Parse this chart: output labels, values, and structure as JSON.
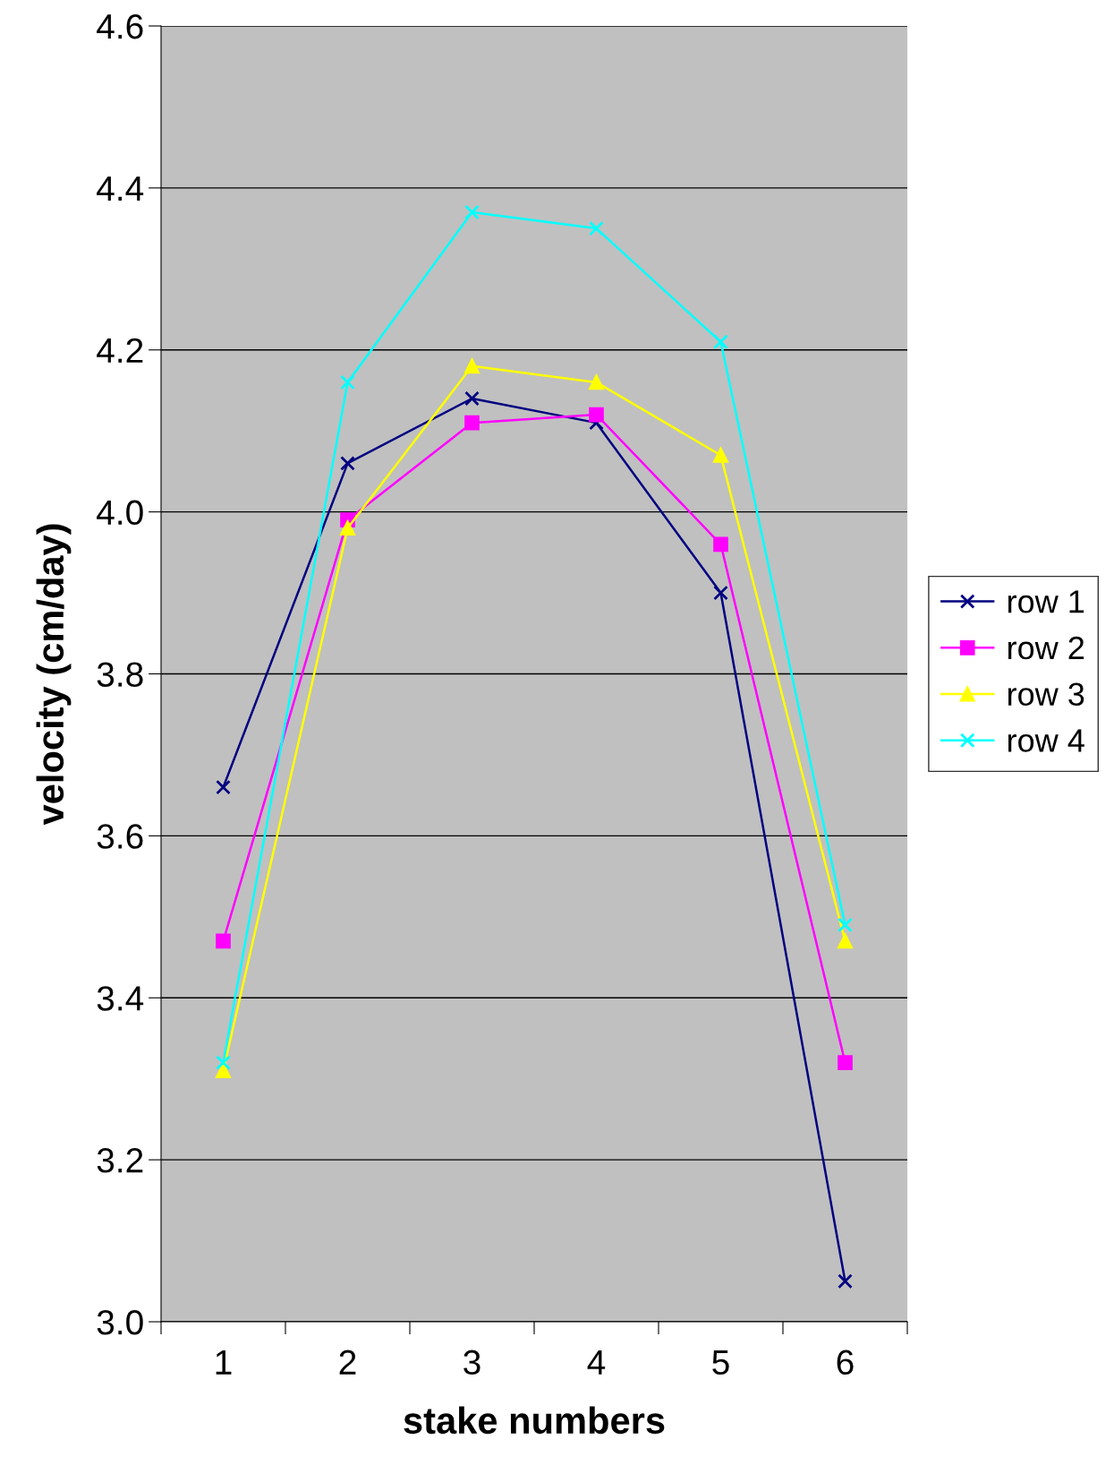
{
  "chart_data": {
    "type": "line",
    "xlabel": "stake numbers",
    "ylabel": "velocity (cm/day)",
    "categories": [
      "1",
      "2",
      "3",
      "4",
      "5",
      "6"
    ],
    "series": [
      {
        "name": "row 1",
        "color": "#000080",
        "marker": "cross",
        "values": [
          3.66,
          4.06,
          4.14,
          4.11,
          3.9,
          3.05
        ]
      },
      {
        "name": "row 2",
        "color": "#ff00ff",
        "marker": "square",
        "values": [
          3.47,
          3.99,
          4.11,
          4.12,
          3.96,
          3.32
        ]
      },
      {
        "name": "row 3",
        "color": "#ffff00",
        "marker": "triangle",
        "values": [
          3.31,
          3.98,
          4.18,
          4.16,
          4.07,
          3.47
        ]
      },
      {
        "name": "row 4",
        "color": "#00ffff",
        "marker": "cross",
        "values": [
          3.32,
          4.16,
          4.37,
          4.35,
          4.21,
          3.49
        ]
      }
    ],
    "ylim": [
      3.0,
      4.6
    ],
    "yticks": [
      {
        "value": 3.0,
        "label": "3.0"
      },
      3.2,
      3.4,
      3.6,
      3.8,
      {
        "value": 4.0,
        "label": "4.0"
      },
      4.2,
      4.4,
      4.6
    ],
    "grid": "y",
    "legend": "right",
    "line_style": "solid"
  }
}
